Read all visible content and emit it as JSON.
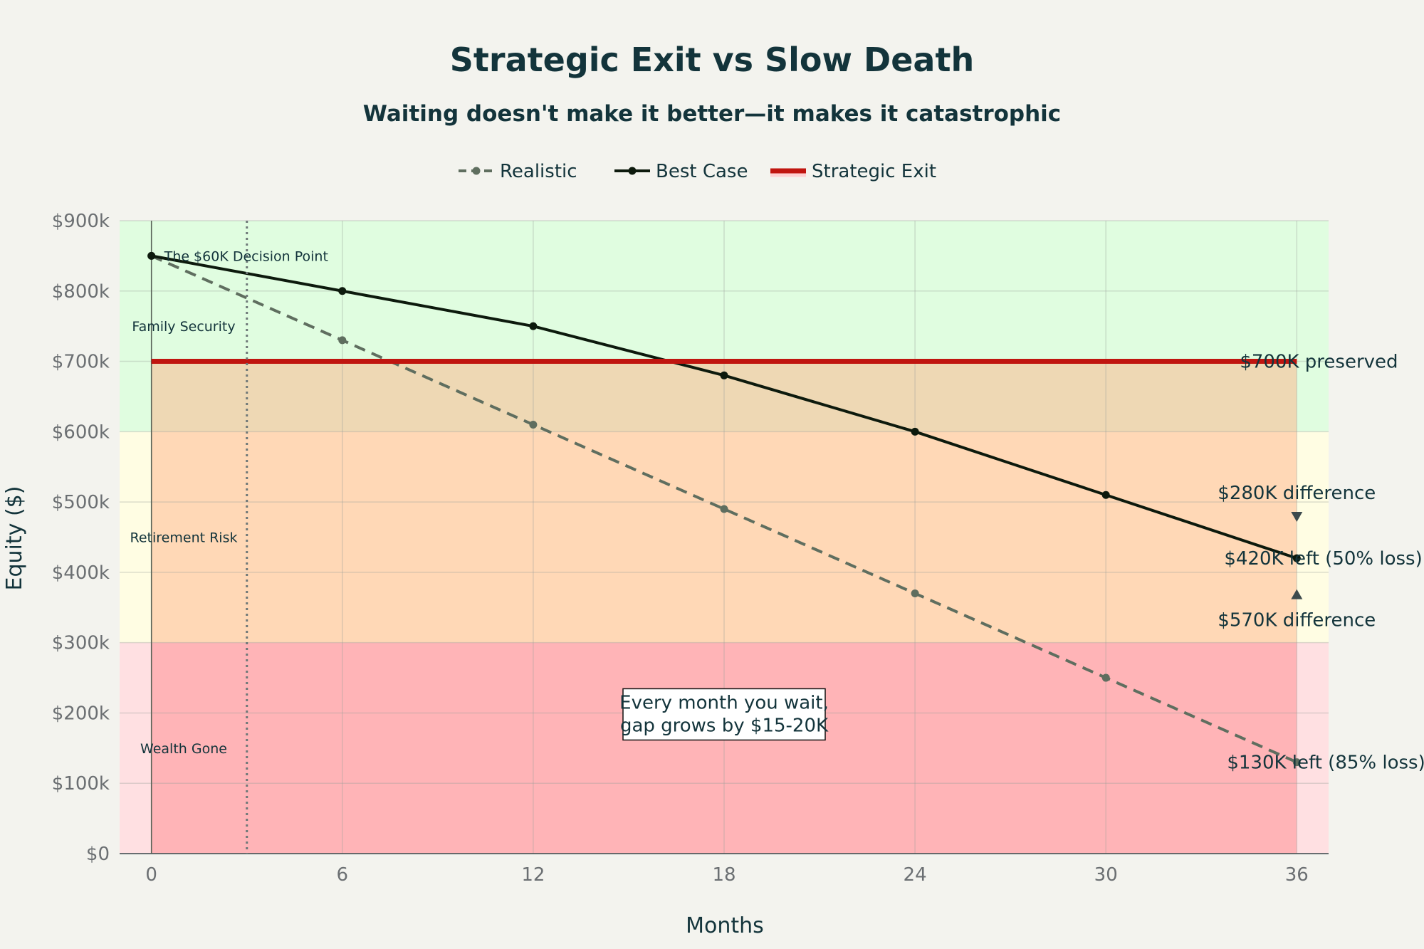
{
  "chart_data": {
    "type": "line",
    "title": "Strategic Exit vs Slow Death",
    "subtitle": "Waiting doesn't make it better—it makes it catastrophic",
    "xlabel": "Months",
    "ylabel": "Equity ($)",
    "xlim": [
      -1,
      37
    ],
    "ylim": [
      0,
      900000
    ],
    "x_ticks": [
      0,
      6,
      12,
      18,
      24,
      30,
      36
    ],
    "y_ticks": [
      0,
      100000,
      200000,
      300000,
      400000,
      500000,
      600000,
      700000,
      800000,
      900000
    ],
    "y_tick_labels": [
      "$0",
      "$100k",
      "$200k",
      "$300k",
      "$400k",
      "$500k",
      "$600k",
      "$700k",
      "$800k",
      "$900k"
    ],
    "grid": true,
    "legend_position": "top-center",
    "series": [
      {
        "name": "Realistic",
        "style": "dashed",
        "color": "#5f6e5f",
        "x": [
          0,
          6,
          12,
          18,
          24,
          30,
          36
        ],
        "values": [
          850000,
          730000,
          610000,
          490000,
          370000,
          250000,
          130000
        ]
      },
      {
        "name": "Best Case",
        "style": "solid",
        "color": "#0d1a0d",
        "x": [
          0,
          6,
          12,
          18,
          24,
          30,
          36
        ],
        "values": [
          850000,
          800000,
          750000,
          680000,
          600000,
          510000,
          420000
        ]
      },
      {
        "name": "Strategic Exit",
        "style": "solid",
        "color": "#c0150f",
        "x": [
          0,
          36
        ],
        "values": [
          700000,
          700000
        ]
      }
    ],
    "zones": [
      {
        "label": "Family Security",
        "y_from": 600000,
        "y_to": 900000,
        "color": "#e0fde0"
      },
      {
        "label": "Retirement Risk",
        "y_from": 300000,
        "y_to": 600000,
        "color": "#fffde3"
      },
      {
        "label": "Wealth Gone",
        "y_from": 0,
        "y_to": 300000,
        "color": "#ffe0e2"
      }
    ],
    "overlays": [
      {
        "x_from": 0,
        "x_to": 36,
        "y_from": 0,
        "y_to": 300000,
        "color": "#ff9da0",
        "opacity": 0.65
      },
      {
        "x_from": 0,
        "x_to": 36,
        "y_from": 300000,
        "y_to": 700000,
        "color": "#ffaa7f",
        "opacity": 0.45
      }
    ],
    "decision_point": {
      "x": 3,
      "label": "The $60K Decision Point"
    },
    "annotations": [
      {
        "text": "$700K preserved",
        "x": 36,
        "y": 700000
      },
      {
        "text": "$420K left (50% loss)",
        "x": 36,
        "y": 420000
      },
      {
        "text": "$130K left (85% loss)",
        "x": 36,
        "y": 130000
      },
      {
        "text": "$280K difference",
        "x": 36,
        "y": 490000,
        "arrow": "down"
      },
      {
        "text": "$570K difference",
        "x": 36,
        "y": 380000,
        "arrow": "up"
      }
    ],
    "note_box": {
      "lines": [
        "Every month you wait,",
        "gap grows by $15-20K"
      ],
      "x": 18,
      "y": 200000
    }
  }
}
